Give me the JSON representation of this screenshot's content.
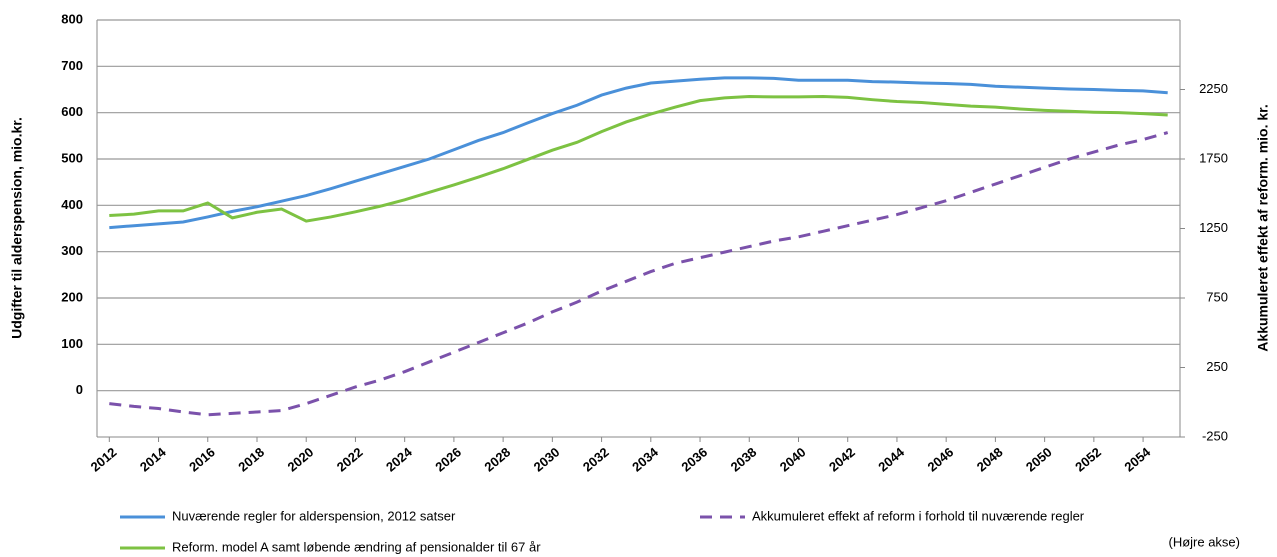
{
  "chart_data": {
    "type": "line",
    "ylabel": "Udgifter til alderspension, mio.kr.",
    "y2label": "Akkumuleret effekt af reform. mio. kr.",
    "annotation": "(Højre akse)",
    "categories": [
      "2012",
      null,
      "2014",
      null,
      "2016",
      null,
      "2018",
      null,
      "2020",
      null,
      "2022",
      null,
      "2024",
      null,
      "2026",
      null,
      "2028",
      null,
      "2030",
      null,
      "2032",
      null,
      "2034",
      null,
      "2036",
      null,
      "2038",
      null,
      "2040",
      null,
      "2042",
      null,
      "2044",
      null,
      "2046",
      null,
      "2048",
      null,
      "2050",
      null,
      "2052",
      null,
      "2054",
      null
    ],
    "ylim": [
      -100,
      800
    ],
    "yticks": [
      0,
      100,
      200,
      300,
      400,
      500,
      600,
      700,
      800
    ],
    "y2lim": [
      -250,
      2750
    ],
    "y2ticks": [
      -250,
      250,
      750,
      1250,
      1750,
      2250
    ],
    "grid": true,
    "series": [
      {
        "name": "Nuværende regler for alderspension, 2012 satser",
        "color": "#4a90d9",
        "values": [
          352,
          356,
          360,
          364,
          375,
          387,
          397,
          409,
          421,
          436,
          452,
          468,
          484,
          500,
          520,
          540,
          557,
          578,
          598,
          616,
          638,
          653,
          664,
          668,
          672,
          675,
          675,
          674,
          670,
          670,
          670,
          667,
          666,
          664,
          663,
          661,
          657,
          655,
          653,
          651,
          650,
          648,
          647,
          643
        ]
      },
      {
        "name": "Reform. model A samt løbende ændring af pensionalder til 67 år",
        "color": "#7dc242",
        "values": [
          378,
          381,
          388,
          388,
          405,
          373,
          385,
          392,
          366,
          375,
          386,
          398,
          412,
          428,
          444,
          461,
          479,
          499,
          519,
          536,
          559,
          580,
          597,
          612,
          626,
          632,
          635,
          634,
          634,
          635,
          633,
          628,
          624,
          622,
          618,
          614,
          612,
          608,
          605,
          603,
          601,
          600,
          598,
          595
        ]
      },
      {
        "name": "Akkumuleret effekt af reform i forhold til nuværende regler",
        "color": "#7b52ab",
        "axis": "y2",
        "dashed": true,
        "values": [
          -10,
          -30,
          -45,
          -70,
          -90,
          -80,
          -70,
          -60,
          -10,
          50,
          110,
          160,
          220,
          290,
          360,
          430,
          500,
          570,
          650,
          720,
          800,
          870,
          940,
          1000,
          1040,
          1080,
          1120,
          1160,
          1190,
          1230,
          1270,
          1310,
          1350,
          1400,
          1450,
          1510,
          1570,
          1630,
          1690,
          1750,
          1800,
          1850,
          1890,
          1940
        ]
      }
    ]
  }
}
